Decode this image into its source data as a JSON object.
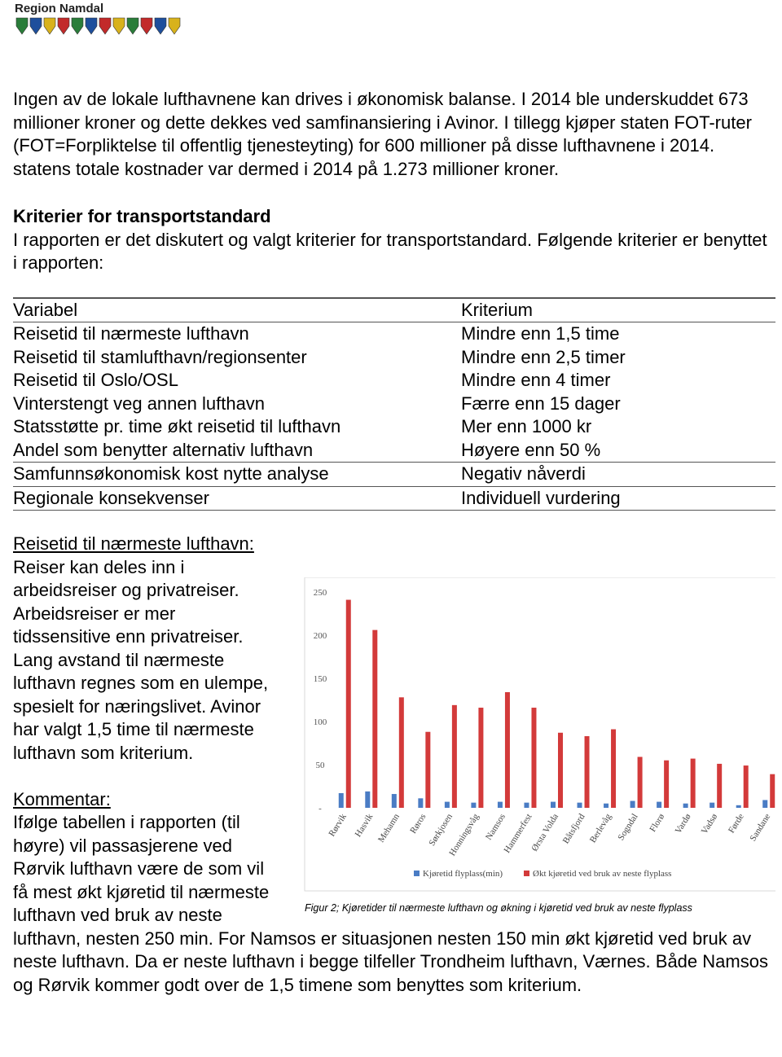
{
  "header": {
    "logo_text": "Region Namdal"
  },
  "paragraphs": [
    "Ingen av de lokale lufthavnene kan drives i økonomisk balanse. I 2014 ble underskuddet 673 millioner kroner og dette dekkes ved samfinansiering i Avinor. I tillegg kjøper staten FOT-ruter (FOT=Forpliktelse til offentlig tjenesteyting) for 600 millioner på disse lufthavnene i 2014. statens totale kostnader var dermed i 2014 på 1.273 millioner kroner."
  ],
  "section": {
    "heading": "Kriterier for transportstandard",
    "text": "I rapporten er det diskutert og valgt kriterier for transportstandard. Følgende kriterier er benyttet i rapporten:"
  },
  "table": {
    "header": [
      "Variabel",
      "Kriterium"
    ],
    "rows": [
      [
        "Reisetid til nærmeste lufthavn",
        "Mindre enn 1,5 time"
      ],
      [
        "Reisetid til stamlufthavn/regionsenter",
        "Mindre enn 2,5 timer"
      ],
      [
        "Reisetid til Oslo/OSL",
        "Mindre enn 4 timer"
      ],
      [
        "Vinterstengt veg annen lufthavn",
        "Færre enn 15 dager"
      ],
      [
        "Statsstøtte pr. time økt reisetid til lufthavn",
        "Mer enn 1000 kr"
      ],
      [
        "Andel som benytter alternativ lufthavn",
        "Høyere enn 50 %"
      ],
      [
        "Samfunnsøkonomisk kost nytte analyse",
        "Negativ nåverdi"
      ],
      [
        "Regionale konsekvenser",
        "Individuell vurdering"
      ]
    ]
  },
  "subsection": {
    "heading": "Reisetid til nærmeste lufthavn:",
    "text": "Reiser kan deles inn i arbeidsreiser og privatreiser. Arbeidsreiser er mer tidssensitive enn privatreiser. Lang avstand til nærmeste lufthavn regnes som en ulempe, spesielt for næringslivet. Avinor har valgt 1,5 time til nærmeste lufthavn som kriterium.",
    "comment_heading": "Kommentar:",
    "comment_text": "Ifølge tabellen i rapporten (til høyre) vil passasjerene ved Rørvik lufthavn være de som vil få mest økt kjøretid til nærmeste lufthavn ved bruk av neste lufthavn, nesten 250 min. For Namsos er situasjonen nesten 150 min økt kjøretid ved bruk av neste lufthavn. Da er neste lufthavn i begge tilfeller Trondheim lufthavn, Værnes. Både Namsos og Rørvik kommer godt over de 1,5 timene som benyttes som kriterium."
  },
  "figure_caption": "Figur 2; Kjøretider til nærmeste lufthavn og økning i kjøretid ved bruk av neste flyplass",
  "chart_data": {
    "type": "bar",
    "categories": [
      "Rørvik",
      "Hasvik",
      "Mehamn",
      "Røros",
      "Sørkjosen",
      "Honningsvåg",
      "Namsos",
      "Hammerfest",
      "Ørsta Volda",
      "Båtsfjord",
      "Berlevåg",
      "Sogndal",
      "Florø",
      "Vardø",
      "Vadsø",
      "Førde",
      "Sandane"
    ],
    "series": [
      {
        "name": "Kjøretid flyplass(min)",
        "color": "#4a7cc4",
        "values": [
          17,
          19,
          16,
          11,
          7,
          6,
          7,
          6,
          7,
          6,
          5,
          8,
          7,
          5,
          6,
          3,
          9
        ]
      },
      {
        "name": "Økt kjøretid ved bruk av neste flyplass",
        "color": "#d33a3a",
        "values": [
          241,
          206,
          128,
          88,
          119,
          116,
          134,
          116,
          87,
          83,
          91,
          59,
          55,
          57,
          51,
          49,
          39
        ]
      }
    ],
    "ylim": [
      0,
      260
    ],
    "yticks": [
      {
        "value": 0,
        "label": "-"
      },
      50,
      100,
      150,
      200,
      250
    ],
    "grid": false,
    "legend": "bottom"
  }
}
